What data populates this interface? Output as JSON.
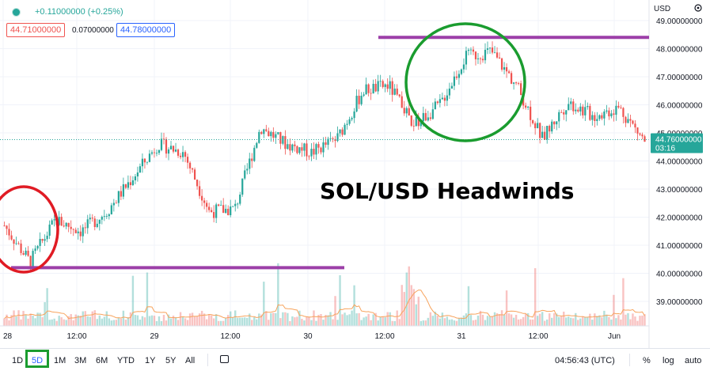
{
  "header": {
    "change": "+0.11000000 (+0.25%)",
    "bid": "44.71000000",
    "spread": "0.07000000",
    "ask": "44.78000000"
  },
  "axis": {
    "currency": "USD",
    "last_price": "44.76000000",
    "countdown": "03:16"
  },
  "headline": "SOL/USD Headwinds",
  "colors": {
    "up": "#26a69a",
    "down": "#ef5350",
    "support_resistance": "#9c3fa8",
    "circle_red": "#e01b24",
    "circle_green": "#1a9c2f",
    "volume_ma": "#f7a35c"
  },
  "bottom_bar": {
    "ranges": [
      "1D",
      "5D",
      "1M",
      "3M",
      "6M",
      "YTD",
      "1Y",
      "5Y",
      "All"
    ],
    "active_range": "5D",
    "time": "04:56:43 (UTC)",
    "percent": "%",
    "log": "log",
    "auto": "auto"
  },
  "chart_data": {
    "type": "candlestick",
    "ylabel": "",
    "ylim": [
      38.3,
      49.3
    ],
    "y_ticks": [
      "49.00000000",
      "48.00000000",
      "47.00000000",
      "46.00000000",
      "45.00000000",
      "44.00000000",
      "43.00000000",
      "42.00000000",
      "41.00000000",
      "40.00000000",
      "39.00000000"
    ],
    "x_ticks": [
      "28",
      "12:00",
      "29",
      "12:00",
      "30",
      "12:00",
      "31",
      "12:00",
      "Jun"
    ],
    "series": [
      {
        "name": "",
        "x": [
          0,
          0.04,
          0.08,
          0.12,
          0.16,
          0.2,
          0.24,
          0.28,
          0.32,
          0.36,
          0.4,
          0.44,
          0.48,
          0.52,
          0.56,
          0.6,
          0.64,
          0.68,
          0.72,
          0.76,
          0.8,
          0.84,
          0.88,
          0.92,
          0.96,
          1.0
        ],
        "values": [
          41.7,
          40.4,
          41.9,
          41.5,
          42.2,
          43.4,
          44.6,
          44.3,
          42.2,
          42.3,
          45.2,
          44.6,
          44.3,
          44.8,
          46.5,
          46.7,
          45.3,
          46.0,
          47.7,
          47.9,
          46.7,
          44.8,
          46.1,
          45.6,
          45.9,
          44.7
        ]
      }
    ],
    "levels": [
      40.2,
      48.4
    ],
    "last_price": 44.76
  }
}
